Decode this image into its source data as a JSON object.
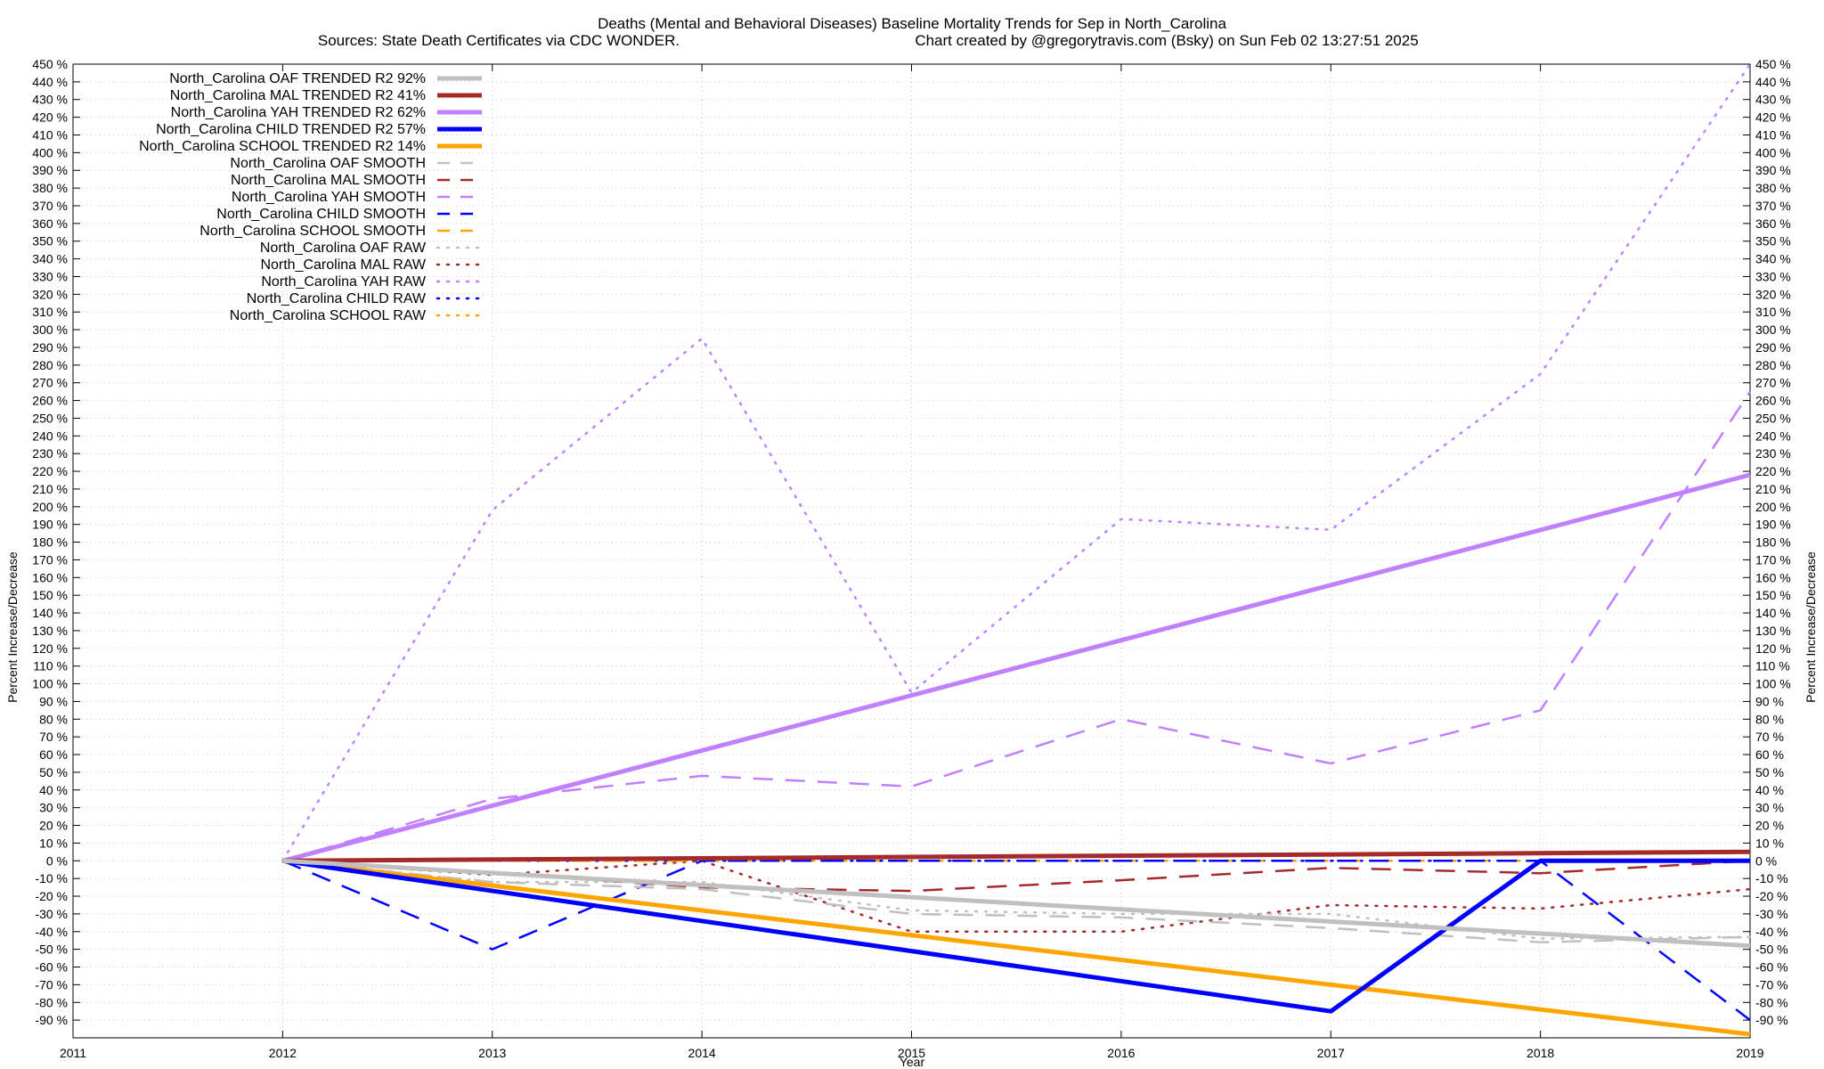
{
  "chart_data": {
    "type": "line",
    "title": "Deaths (Mental and Behavioral Diseases)  Baseline Mortality Trends for Sep in North_Carolina",
    "subtitle_left": "Sources: State Death Certificates via CDC WONDER.",
    "subtitle_right": "Chart created by @gregorytravis.com (Bsky) on Sun Feb 02 13:27:51 2025",
    "xlabel": "Year",
    "ylabel": "Percent Increase/Decrease",
    "ylabel_right": "Percent Increase/Decrease",
    "xlim": [
      2011,
      2019
    ],
    "ylim": [
      -100,
      450
    ],
    "x_ticks": [
      "2011",
      "2012",
      "2013",
      "2014",
      "2015",
      "2016",
      "2017",
      "2018",
      "2019"
    ],
    "y_tick_step": 10,
    "y_tick_suffix": " %",
    "grid": true,
    "legend_position": "top-left",
    "series": [
      {
        "name": "North_Carolina OAF TRENDED R2  92%",
        "color": "#c0c0c0",
        "style": "solid",
        "x": [
          2012,
          2019
        ],
        "y": [
          0,
          -48
        ]
      },
      {
        "name": "North_Carolina MAL TRENDED R2  41%",
        "color": "#a52a2a",
        "style": "solid",
        "x": [
          2012,
          2019
        ],
        "y": [
          0,
          5
        ]
      },
      {
        "name": "North_Carolina YAH TRENDED R2  62%",
        "color": "#c080ff",
        "style": "solid",
        "x": [
          2012,
          2019
        ],
        "y": [
          0,
          218
        ]
      },
      {
        "name": "North_Carolina CHILD TRENDED R2  57%",
        "color": "#0000ff",
        "style": "solid",
        "x": [
          2012,
          2017,
          2018,
          2019
        ],
        "y": [
          0,
          -85,
          0,
          0
        ]
      },
      {
        "name": "North_Carolina SCHOOL TRENDED R2  14%",
        "color": "#ffa500",
        "style": "solid",
        "x": [
          2012,
          2019
        ],
        "y": [
          0,
          -98
        ]
      },
      {
        "name": "North_Carolina OAF SMOOTH",
        "color": "#c0c0c0",
        "style": "dashed",
        "x": [
          2012,
          2013,
          2014,
          2015,
          2016,
          2017,
          2018,
          2019
        ],
        "y": [
          0,
          -12,
          -16,
          -30,
          -32,
          -38,
          -46,
          -43
        ]
      },
      {
        "name": "North_Carolina MAL SMOOTH",
        "color": "#a52a2a",
        "style": "dashed",
        "x": [
          2012,
          2013,
          2014,
          2015,
          2016,
          2017,
          2018,
          2019
        ],
        "y": [
          0,
          -7,
          -15,
          -17,
          -11,
          -4,
          -7,
          0
        ]
      },
      {
        "name": "North_Carolina YAH SMOOTH",
        "color": "#c080ff",
        "style": "dashed",
        "x": [
          2012,
          2013,
          2014,
          2015,
          2016,
          2017,
          2018,
          2019
        ],
        "y": [
          0,
          35,
          48,
          42,
          80,
          55,
          85,
          265
        ]
      },
      {
        "name": "North_Carolina CHILD SMOOTH",
        "color": "#0000ff",
        "style": "dashed",
        "x": [
          2012,
          2013,
          2014,
          2015,
          2016,
          2017,
          2018,
          2019
        ],
        "y": [
          0,
          -50,
          0,
          0,
          0,
          0,
          0,
          -90
        ]
      },
      {
        "name": "North_Carolina SCHOOL SMOOTH",
        "color": "#ffa500",
        "style": "dashed",
        "x": [
          2012,
          2013,
          2014,
          2015,
          2016,
          2017,
          2018,
          2019
        ],
        "y": [
          0,
          0,
          0,
          0,
          0,
          0,
          0,
          0
        ]
      },
      {
        "name": "North_Carolina OAF RAW",
        "color": "#c0c0c0",
        "style": "dotted",
        "x": [
          2012,
          2013,
          2014,
          2015,
          2016,
          2017,
          2018,
          2019
        ],
        "y": [
          0,
          -12,
          -12,
          -28,
          -30,
          -30,
          -44,
          -43
        ]
      },
      {
        "name": "North_Carolina MAL RAW",
        "color": "#a52a2a",
        "style": "dotted",
        "x": [
          2012,
          2013,
          2014,
          2015,
          2016,
          2017,
          2018,
          2019
        ],
        "y": [
          0,
          -8,
          0,
          -40,
          -40,
          -25,
          -27,
          -16
        ]
      },
      {
        "name": "North_Carolina YAH RAW",
        "color": "#c080ff",
        "style": "dotted",
        "x": [
          2012,
          2013,
          2014,
          2015,
          2016,
          2017,
          2018,
          2019
        ],
        "y": [
          0,
          198,
          295,
          95,
          193,
          187,
          275,
          450
        ]
      },
      {
        "name": "North_Carolina CHILD RAW",
        "color": "#0000ff",
        "style": "dotted",
        "x": [
          2012,
          2013,
          2014,
          2015,
          2016,
          2017,
          2018,
          2019
        ],
        "y": [
          0,
          0,
          0,
          0,
          0,
          0,
          0,
          0
        ]
      },
      {
        "name": "North_Carolina SCHOOL RAW",
        "color": "#ffa500",
        "style": "dotted",
        "x": [
          2012,
          2013,
          2014,
          2015,
          2016,
          2017,
          2018,
          2019
        ],
        "y": [
          0,
          0,
          0,
          0,
          0,
          0,
          0,
          0
        ]
      }
    ]
  }
}
